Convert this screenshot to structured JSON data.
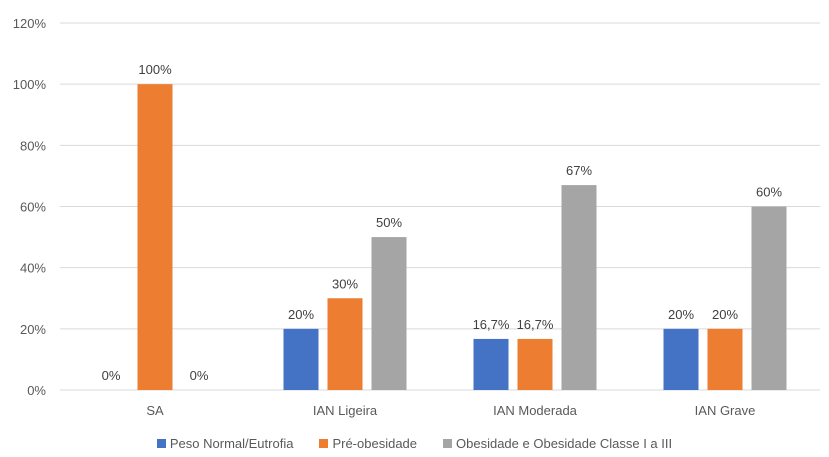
{
  "chart_data": {
    "type": "bar",
    "categories": [
      "SA",
      "IAN Ligeira",
      "IAN Moderada",
      "IAN Grave"
    ],
    "series": [
      {
        "name": "Peso Normal/Eutrofia",
        "color": "#4472C4",
        "values": [
          0,
          20,
          16.7,
          20
        ],
        "labels": [
          "0%",
          "20%",
          "16,7%",
          "20%"
        ]
      },
      {
        "name": "Pré-obesidade",
        "color": "#ED7D31",
        "values": [
          100,
          30,
          16.7,
          20
        ],
        "labels": [
          "100%",
          "30%",
          "16,7%",
          "20%"
        ]
      },
      {
        "name": "Obesidade e Obesidade Classe I a III",
        "color": "#A5A5A5",
        "values": [
          0,
          50,
          67,
          60
        ],
        "labels": [
          "0%",
          "50%",
          "67%",
          "60%"
        ]
      }
    ],
    "yticks": [
      "0%",
      "20%",
      "40%",
      "60%",
      "80%",
      "100%",
      "120%"
    ],
    "ylim": [
      0,
      120
    ],
    "grid": true,
    "legend_position": "bottom"
  }
}
